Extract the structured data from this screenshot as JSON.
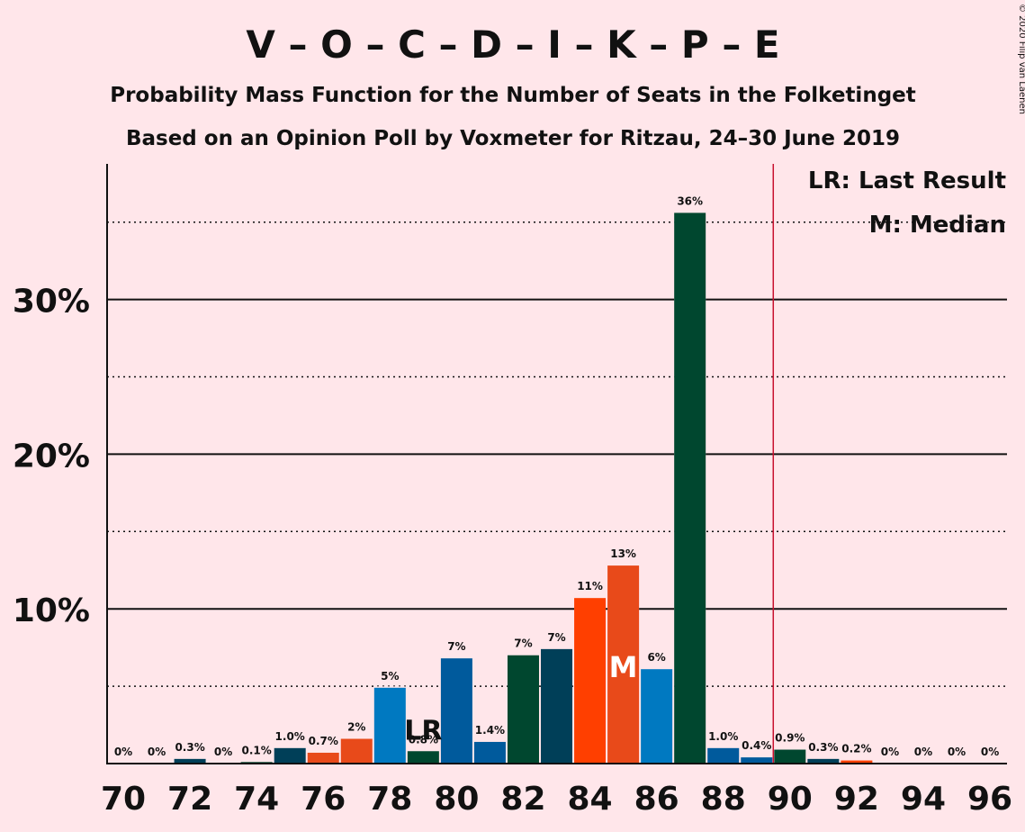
{
  "chart_data": {
    "type": "bar",
    "title": "V – O – C – D – I – K – P – E",
    "subtitle1": "Probability Mass Function for the Number of Seats in the Folketinget",
    "subtitle2": "Based on an Opinion Poll by Voxmeter for Ritzau, 24–30 June 2019",
    "copyright": "© 2020 Filip van Laenen",
    "legend": {
      "lr": "LR: Last Result",
      "m": "M: Median",
      "placement": "top-right"
    },
    "ylim": [
      0,
      39
    ],
    "y_ticks": [
      {
        "value": 10,
        "label": "10%"
      },
      {
        "value": 20,
        "label": "20%"
      },
      {
        "value": 30,
        "label": "30%"
      }
    ],
    "y_minor_ticks": [
      5,
      15,
      25,
      35
    ],
    "x_tick_labels": [
      "70",
      "72",
      "74",
      "76",
      "78",
      "80",
      "82",
      "84",
      "86",
      "88",
      "90",
      "92",
      "94",
      "96"
    ],
    "majority_line": 89.5,
    "last_result_seat": 79,
    "median_seat": 85,
    "lr_marker": "LR",
    "median_marker": "M",
    "bars": [
      {
        "seat": 70,
        "value": 0,
        "label": "0%",
        "color": "#00472F"
      },
      {
        "seat": 71,
        "value": 0,
        "label": "0%",
        "color": "#00472F"
      },
      {
        "seat": 72,
        "value": 0.3,
        "label": "0.3%",
        "color": "#003F58"
      },
      {
        "seat": 73,
        "value": 0,
        "label": "0%",
        "color": "#00472F"
      },
      {
        "seat": 74,
        "value": 0.1,
        "label": "0.1%",
        "color": "#00472F"
      },
      {
        "seat": 75,
        "value": 1.0,
        "label": "1.0%",
        "color": "#003F58"
      },
      {
        "seat": 76,
        "value": 0.7,
        "label": "0.7%",
        "color": "#E84A1A"
      },
      {
        "seat": 77,
        "value": 1.6,
        "label": "2%",
        "color": "#E84A1A"
      },
      {
        "seat": 78,
        "value": 4.9,
        "label": "5%",
        "color": "#0079C1"
      },
      {
        "seat": 79,
        "value": 0.8,
        "label": "0.8%",
        "color": "#00472F"
      },
      {
        "seat": 80,
        "value": 6.8,
        "label": "7%",
        "color": "#005A9C"
      },
      {
        "seat": 81,
        "value": 1.4,
        "label": "1.4%",
        "color": "#005A9C"
      },
      {
        "seat": 82,
        "value": 7.0,
        "label": "7%",
        "color": "#00472F"
      },
      {
        "seat": 83,
        "value": 7.4,
        "label": "7%",
        "color": "#003F58"
      },
      {
        "seat": 84,
        "value": 10.7,
        "label": "11%",
        "color": "#FF3F00"
      },
      {
        "seat": 85,
        "value": 12.8,
        "label": "13%",
        "color": "#E84A1A"
      },
      {
        "seat": 86,
        "value": 6.1,
        "label": "6%",
        "color": "#0079C1"
      },
      {
        "seat": 87,
        "value": 35.6,
        "label": "36%",
        "color": "#00472F"
      },
      {
        "seat": 88,
        "value": 1.0,
        "label": "1.0%",
        "color": "#005A9C"
      },
      {
        "seat": 89,
        "value": 0.4,
        "label": "0.4%",
        "color": "#005A9C"
      },
      {
        "seat": 90,
        "value": 0.9,
        "label": "0.9%",
        "color": "#00472F"
      },
      {
        "seat": 91,
        "value": 0.3,
        "label": "0.3%",
        "color": "#003F58"
      },
      {
        "seat": 92,
        "value": 0.2,
        "label": "0.2%",
        "color": "#FF3F00"
      },
      {
        "seat": 93,
        "value": 0,
        "label": "0%",
        "color": "#00472F"
      },
      {
        "seat": 94,
        "value": 0,
        "label": "0%",
        "color": "#00472F"
      },
      {
        "seat": 95,
        "value": 0,
        "label": "0%",
        "color": "#00472F"
      },
      {
        "seat": 96,
        "value": 0,
        "label": "0%",
        "color": "#00472F"
      }
    ]
  },
  "colors": {
    "background": "#FFE6EA",
    "majority_line": "#C8102E",
    "text": "#111111"
  }
}
